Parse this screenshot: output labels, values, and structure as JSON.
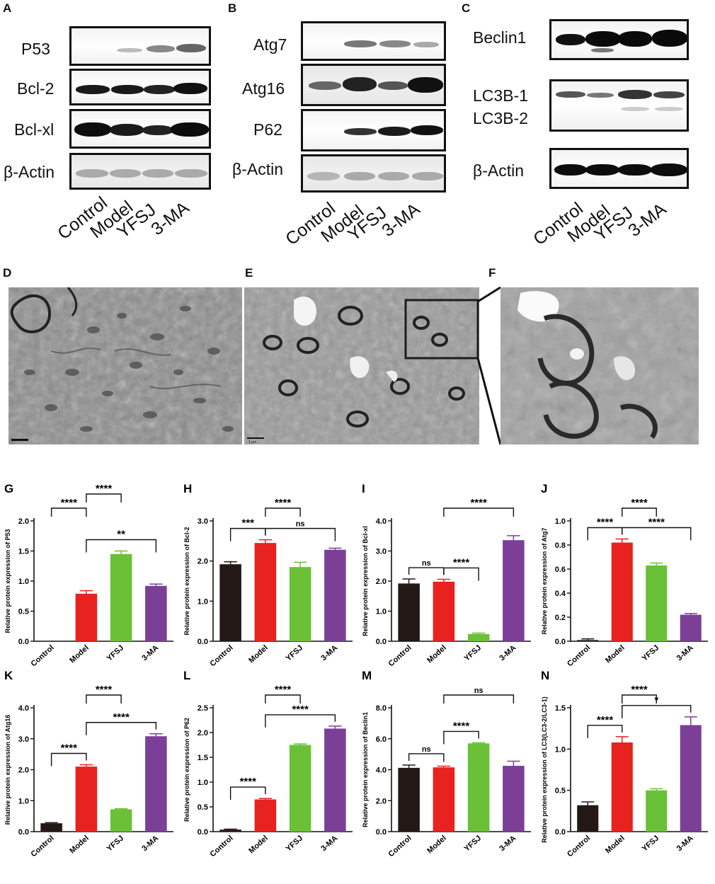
{
  "figure": {
    "blots": [
      {
        "letter": "A",
        "labels": [
          "P53",
          "Bcl-2",
          "Bcl-xl",
          "β-Actin"
        ],
        "lanes": [
          "Control",
          "Model",
          "YFSJ",
          "3-MA"
        ]
      },
      {
        "letter": "B",
        "labels": [
          "Atg7",
          "Atg16",
          "P62",
          "β-Actin"
        ],
        "lanes": [
          "Control",
          "Model",
          "YFSJ",
          "3-MA"
        ]
      },
      {
        "letter": "C",
        "labels": [
          "Beclin1",
          "LC3B-1",
          "LC3B-2",
          "β-Actin"
        ],
        "lanes": [
          "Control",
          "Model",
          "YFSJ",
          "3-MA"
        ]
      }
    ],
    "em_panels": [
      {
        "letter": "D",
        "scale": ""
      },
      {
        "letter": "E",
        "scale": "1 μm"
      },
      {
        "letter": "F",
        "scale": ""
      }
    ],
    "colors": {
      "Control": "#231815",
      "Model": "#e8221e",
      "YFSJ": "#6ac137",
      "3-MA": "#7b3f98"
    }
  },
  "chart_data": [
    {
      "letter": "G",
      "type": "bar",
      "categories": [
        "Control",
        "Model",
        "YFSJ",
        "3-MA"
      ],
      "values": [
        0.0,
        0.79,
        1.45,
        0.92
      ],
      "errors": [
        0,
        0.05,
        0.05,
        0.03
      ],
      "ylabel": "Relative protein expression of P53",
      "ylim": [
        0,
        2.0
      ],
      "ticks": [
        "0.0",
        "0.5",
        "1.0",
        "1.5",
        "2.0"
      ],
      "sig": [
        {
          "a": 0,
          "b": 1,
          "label": "****",
          "level": 2
        },
        {
          "a": 1,
          "b": 3,
          "label": "**",
          "level": 1
        },
        {
          "a": 1,
          "b": 2,
          "label": "****",
          "level": 3
        }
      ]
    },
    {
      "letter": "H",
      "type": "bar",
      "categories": [
        "Control",
        "Model",
        "YFSJ",
        "3-MA"
      ],
      "values": [
        1.92,
        2.45,
        1.85,
        2.28
      ],
      "errors": [
        0.06,
        0.08,
        0.12,
        0.04
      ],
      "ylabel": "Relative protein expression of Bcl-2",
      "ylim": [
        0,
        3.0
      ],
      "ticks": [
        "0.0",
        "1.0",
        "2.0",
        "3.0"
      ],
      "sig": [
        {
          "a": 0,
          "b": 1,
          "label": "***",
          "level": 1
        },
        {
          "a": 1,
          "b": 3,
          "label": "ns",
          "level": 1
        },
        {
          "a": 1,
          "b": 2,
          "label": "****",
          "level": 2
        }
      ]
    },
    {
      "letter": "I",
      "type": "bar",
      "categories": [
        "Control",
        "Model",
        "YFSJ",
        "3-MA"
      ],
      "values": [
        1.92,
        1.98,
        0.24,
        3.36
      ],
      "errors": [
        0.15,
        0.08,
        0.03,
        0.15
      ],
      "ylabel": "Relative protein expression of Bcl-xl",
      "ylim": [
        0,
        4.0
      ],
      "ticks": [
        "0.0",
        "1.0",
        "2.0",
        "3.0",
        "4.0"
      ],
      "sig": [
        {
          "a": 0,
          "b": 1,
          "label": "ns",
          "level": 1
        },
        {
          "a": 1,
          "b": 2,
          "label": "****",
          "level": 1
        },
        {
          "a": 1,
          "b": 3,
          "label": "****",
          "level": 2
        }
      ]
    },
    {
      "letter": "J",
      "type": "bar",
      "categories": [
        "Control",
        "Model",
        "YFSJ",
        "3-MA"
      ],
      "values": [
        0.01,
        0.82,
        0.63,
        0.22
      ],
      "errors": [
        0.01,
        0.03,
        0.02,
        0.01
      ],
      "ylabel": "Relative protein expression of Atg7",
      "ylim": [
        0,
        1.0
      ],
      "ticks": [
        "0.0",
        "0.2",
        "0.4",
        "0.6",
        "0.8",
        "1.0"
      ],
      "sig": [
        {
          "a": 0,
          "b": 1,
          "label": "****",
          "level": 1
        },
        {
          "a": 1,
          "b": 3,
          "label": "****",
          "level": 1
        },
        {
          "a": 1,
          "b": 2,
          "label": "****",
          "level": 2
        }
      ]
    },
    {
      "letter": "K",
      "type": "bar",
      "categories": [
        "Control",
        "Model",
        "YFSJ",
        "3-MA"
      ],
      "values": [
        0.27,
        2.1,
        0.72,
        3.08
      ],
      "errors": [
        0.02,
        0.06,
        0.02,
        0.08
      ],
      "ylabel": "Relative protein expression of Atg16",
      "ylim": [
        0,
        4.0
      ],
      "ticks": [
        "0.0",
        "1.0",
        "2.0",
        "3.0",
        "4.0"
      ],
      "sig": [
        {
          "a": 0,
          "b": 1,
          "label": "****",
          "level": 1
        },
        {
          "a": 1,
          "b": 3,
          "label": "****",
          "level": 1
        },
        {
          "a": 1,
          "b": 2,
          "label": "****",
          "level": 2
        }
      ]
    },
    {
      "letter": "L",
      "type": "bar",
      "categories": [
        "Control",
        "Model",
        "YFSJ",
        "3-MA"
      ],
      "values": [
        0.04,
        0.65,
        1.75,
        2.08
      ],
      "errors": [
        0.01,
        0.02,
        0.02,
        0.05
      ],
      "ylabel": "Relative protein expression of P62",
      "ylim": [
        0,
        2.5
      ],
      "ticks": [
        "0.0",
        "0.5",
        "1.0",
        "1.5",
        "2.0",
        "2.5"
      ],
      "sig": [
        {
          "a": 0,
          "b": 1,
          "label": "****",
          "level": 1
        },
        {
          "a": 1,
          "b": 3,
          "label": "****",
          "level": 1
        },
        {
          "a": 1,
          "b": 2,
          "label": "****",
          "level": 2
        }
      ]
    },
    {
      "letter": "M",
      "type": "bar",
      "categories": [
        "Control",
        "Model",
        "YFSJ",
        "3-MA"
      ],
      "values": [
        4.12,
        4.15,
        5.7,
        4.25
      ],
      "errors": [
        0.18,
        0.08,
        0.04,
        0.3
      ],
      "ylabel": "Relative protein expression of Beclin1",
      "ylim": [
        0,
        8.0
      ],
      "ticks": [
        "0.0",
        "2.0",
        "4.0",
        "6.0",
        "8.0"
      ],
      "sig": [
        {
          "a": 0,
          "b": 1,
          "label": "ns",
          "level": 1
        },
        {
          "a": 1,
          "b": 2,
          "label": "****",
          "level": 1
        },
        {
          "a": 1,
          "b": 3,
          "label": "ns",
          "level": 2
        }
      ]
    },
    {
      "letter": "N",
      "type": "bar",
      "categories": [
        "Control",
        "Model",
        "YFSJ",
        "3-MA"
      ],
      "values": [
        0.32,
        1.08,
        0.5,
        1.29
      ],
      "errors": [
        0.04,
        0.07,
        0.02,
        0.1
      ],
      "ylabel": "Relative protein expression of LC3(LC3-2/LC3-1)",
      "ylim": [
        0,
        1.5
      ],
      "ticks": [
        "0.0",
        "0.5",
        "1.0",
        "1.5"
      ],
      "sig": [
        {
          "a": 0,
          "b": 1,
          "label": "****",
          "level": 1
        },
        {
          "a": 1,
          "b": 3,
          "label": "*",
          "level": 1
        },
        {
          "a": 1,
          "b": 2,
          "label": "****",
          "level": 2
        }
      ]
    }
  ]
}
